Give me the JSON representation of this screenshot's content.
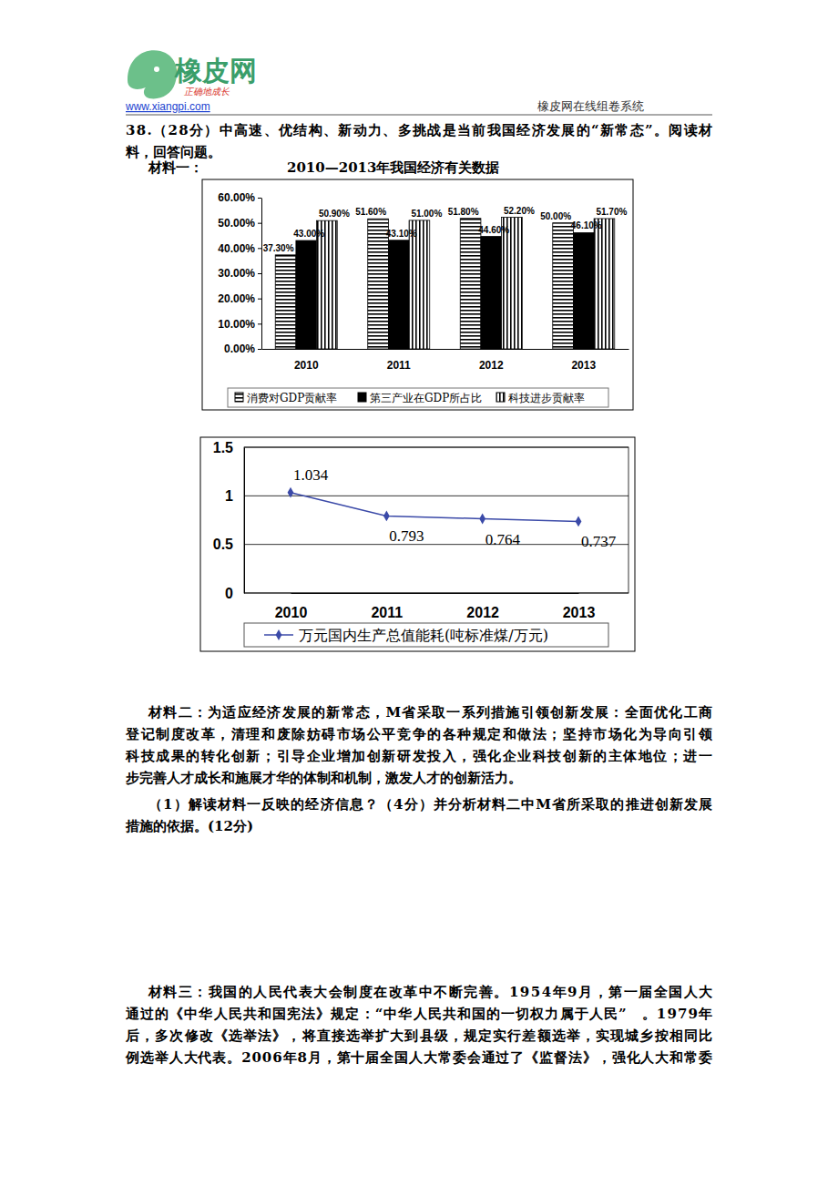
{
  "header": {
    "brand": "橡皮网",
    "slogan": "正确地成长",
    "url": "www.xiangpi.com",
    "system": "橡皮网在线组卷系统"
  },
  "question": {
    "lines": [
      "38.（28分）中高速、优结构、新动力、多挑战是当前我国经济发展的“新常态”。阅读材",
      "料，回答问题。"
    ]
  },
  "material1_label": "材料一：",
  "chart_data": [
    {
      "type": "bar",
      "title": "2010—2013年我国经济有关数据",
      "categories": [
        "2010",
        "2011",
        "2012",
        "2013"
      ],
      "series": [
        {
          "name": "消费对GDP贡献率",
          "color": "#000000",
          "values": [
            37.3,
            51.6,
            51.8,
            50.0
          ],
          "value_labels": [
            "37.30%",
            "51.60%",
            "51.80%",
            "50.00%"
          ]
        },
        {
          "name": "第三产业在GDP所占比",
          "color": "#000000",
          "values": [
            43.0,
            43.1,
            44.6,
            46.1
          ],
          "value_labels": [
            "43.00%",
            "43.10%",
            "44.60%",
            "46.10%"
          ]
        },
        {
          "name": "科技进步贡献率",
          "color": "#000000",
          "values": [
            50.9,
            51.0,
            52.2,
            51.7
          ],
          "value_labels": [
            "50.90%",
            "51.00%",
            "52.20%",
            "51.70%"
          ]
        }
      ],
      "ylim": [
        0,
        60
      ],
      "yticks": [
        {
          "value": 0,
          "label": "0.00%"
        },
        {
          "value": 10,
          "label": "10.00%"
        },
        {
          "value": 20,
          "label": "20.00%"
        },
        {
          "value": 30,
          "label": "30.00%"
        },
        {
          "value": 40,
          "label": "40.00%"
        },
        {
          "value": 50,
          "label": "50.00%"
        },
        {
          "value": 60,
          "label": "60.00%"
        }
      ],
      "grid": false,
      "data_labels": true,
      "legend": "bottom"
    },
    {
      "type": "line",
      "categories": [
        "2010",
        "2011",
        "2012",
        "2013"
      ],
      "series": [
        {
          "name": "万元国内生产总值能耗(吨标准煤/万元)",
          "color": "#3b4aa8",
          "marker": "diamond",
          "values": [
            1.034,
            0.793,
            0.764,
            0.737
          ]
        }
      ],
      "ylim": [
        0,
        1.5
      ],
      "yticks": [
        0,
        0.5,
        1,
        1.5
      ],
      "grid": true,
      "data_labels": true,
      "legend": "bottom"
    }
  ],
  "material2": {
    "lines": [
      "材料二：为适应经济发展的新常态，M省采取一系列措施引领创新发展：全面优化工商",
      "登记制度改革，清理和废除妨碍市场公平竞争的各种规定和做法；坚持市场化为导向引领",
      "科技成果的转化创新；引导企业增加创新研发投入，强化企业科技创新的主体地位；进一",
      "步完善人才成长和施展才华的体制和机制，激发人才的创新活力。"
    ]
  },
  "sub_question": {
    "lines": [
      "（1）解读材料一反映的经济信息？（4分）并分析材料二中M省所采取的推进创新发展",
      "措施的依据。(12分)"
    ]
  },
  "material3": {
    "lines": [
      "材料三：我国的人民代表大会制度在改革中不断完善。1954年9月，第一届全国人大",
      "通过的《中华人民共和国宪法》规定：“中华人民共和国的一切权力属于人民”　。1979年",
      "后，多次修改《选举法》，将直接选举扩大到县级，规定实行差额选举，实现城乡按相同比",
      "例选举人大代表。2006年8月，第十届全国人大常委会通过了《监督法》，强化人大和常委"
    ]
  }
}
